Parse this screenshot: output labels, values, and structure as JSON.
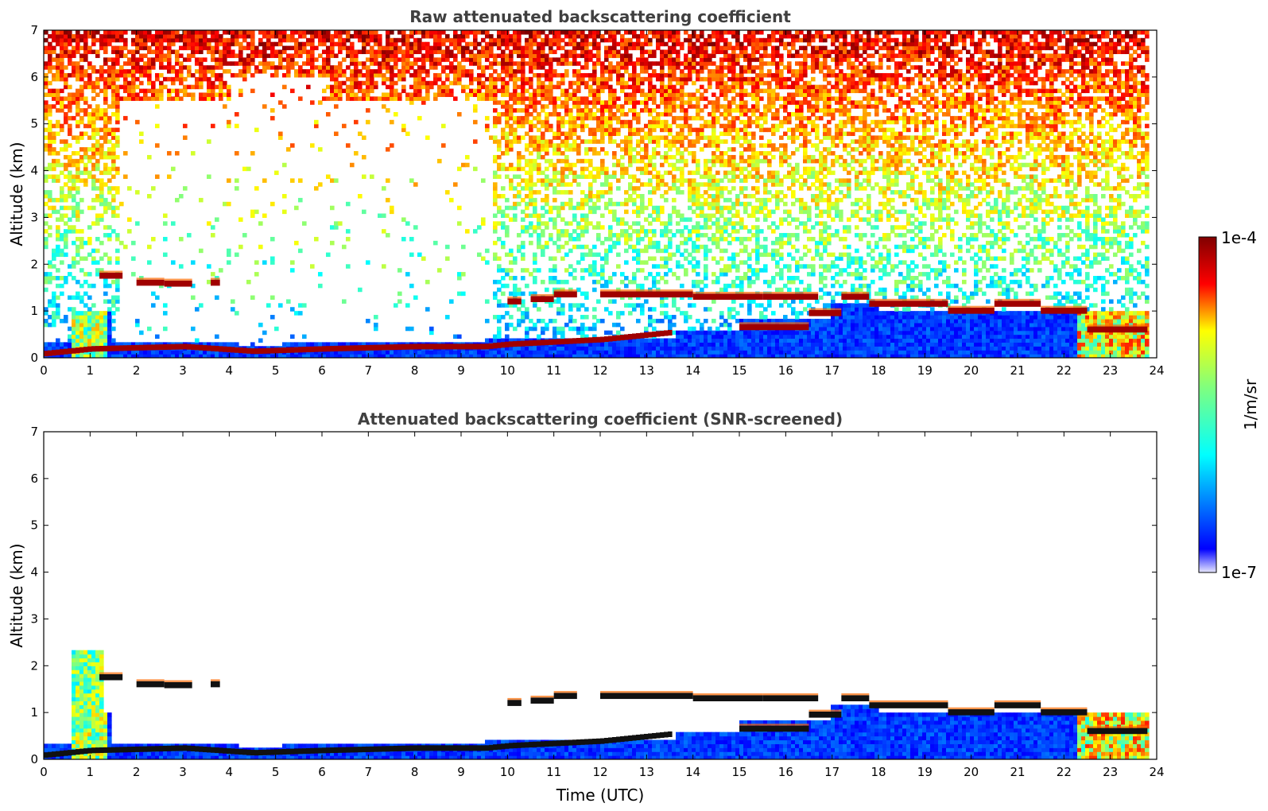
{
  "chart_data": [
    {
      "type": "heatmap",
      "title": "Raw attenuated backscattering coefficient",
      "xlabel": "",
      "ylabel": "Altitude (km)",
      "xlim": [
        0,
        24
      ],
      "ylim": [
        0,
        7
      ],
      "xticks": [
        "0",
        "1",
        "2",
        "3",
        "4",
        "5",
        "6",
        "7",
        "8",
        "9",
        "10",
        "11",
        "12",
        "13",
        "14",
        "15",
        "16",
        "17",
        "18",
        "19",
        "20",
        "21",
        "22",
        "23",
        "24"
      ],
      "yticks": [
        "0",
        "1",
        "2",
        "3",
        "4",
        "5",
        "6",
        "7"
      ],
      "aerosol_layer_top_km": [
        {
          "t": 0.0,
          "z": 0.1
        },
        {
          "t": 1.0,
          "z": 0.2
        },
        {
          "t": 3.0,
          "z": 0.25
        },
        {
          "t": 4.5,
          "z": 0.15
        },
        {
          "t": 6.0,
          "z": 0.2
        },
        {
          "t": 8.0,
          "z": 0.25
        },
        {
          "t": 9.5,
          "z": 0.25
        },
        {
          "t": 10.0,
          "z": 0.3
        },
        {
          "t": 11.0,
          "z": 0.35
        },
        {
          "t": 12.0,
          "z": 0.4
        },
        {
          "t": 13.5,
          "z": 0.55
        }
      ],
      "cloud_layers_km": [
        {
          "t0": 1.2,
          "t1": 1.7,
          "z": 1.75
        },
        {
          "t0": 2.0,
          "t1": 2.6,
          "z": 1.6
        },
        {
          "t0": 2.6,
          "t1": 3.2,
          "z": 1.58
        },
        {
          "t0": 3.6,
          "t1": 3.8,
          "z": 1.6
        },
        {
          "t0": 10.0,
          "t1": 10.3,
          "z": 1.2
        },
        {
          "t0": 10.5,
          "t1": 11.0,
          "z": 1.25
        },
        {
          "t0": 11.0,
          "t1": 11.5,
          "z": 1.35
        },
        {
          "t0": 12.0,
          "t1": 14.0,
          "z": 1.35
        },
        {
          "t0": 14.0,
          "t1": 15.5,
          "z": 1.3
        },
        {
          "t0": 15.5,
          "t1": 16.7,
          "z": 1.3
        },
        {
          "t0": 15.0,
          "t1": 16.5,
          "z": 0.65
        },
        {
          "t0": 16.5,
          "t1": 17.2,
          "z": 0.95
        },
        {
          "t0": 17.2,
          "t1": 17.8,
          "z": 1.3
        },
        {
          "t0": 17.8,
          "t1": 19.5,
          "z": 1.15
        },
        {
          "t0": 19.5,
          "t1": 20.5,
          "z": 1.0
        },
        {
          "t0": 20.5,
          "t1": 21.5,
          "z": 1.15
        },
        {
          "t0": 21.5,
          "t1": 22.5,
          "z": 1.0
        },
        {
          "t0": 22.5,
          "t1": 23.8,
          "z": 0.6
        }
      ]
    },
    {
      "type": "heatmap",
      "title": "Attenuated backscattering coefficient (SNR-screened)",
      "xlabel": "Time (UTC)",
      "ylabel": "Altitude (km)",
      "xlim": [
        0,
        24
      ],
      "ylim": [
        0,
        7
      ],
      "xticks": [
        "0",
        "1",
        "2",
        "3",
        "4",
        "5",
        "6",
        "7",
        "8",
        "9",
        "10",
        "11",
        "12",
        "13",
        "14",
        "15",
        "16",
        "17",
        "18",
        "19",
        "20",
        "21",
        "22",
        "23",
        "24"
      ],
      "yticks": [
        "0",
        "1",
        "2",
        "3",
        "4",
        "5",
        "6",
        "7"
      ]
    }
  ],
  "colorbar": {
    "label": "1/m/sr",
    "max_label": "1e-4",
    "min_label": "1e-7",
    "scale": "log",
    "colormap": "jet"
  },
  "colors": {
    "title": "#404040",
    "low": "#0000ff",
    "high": "#800000"
  }
}
